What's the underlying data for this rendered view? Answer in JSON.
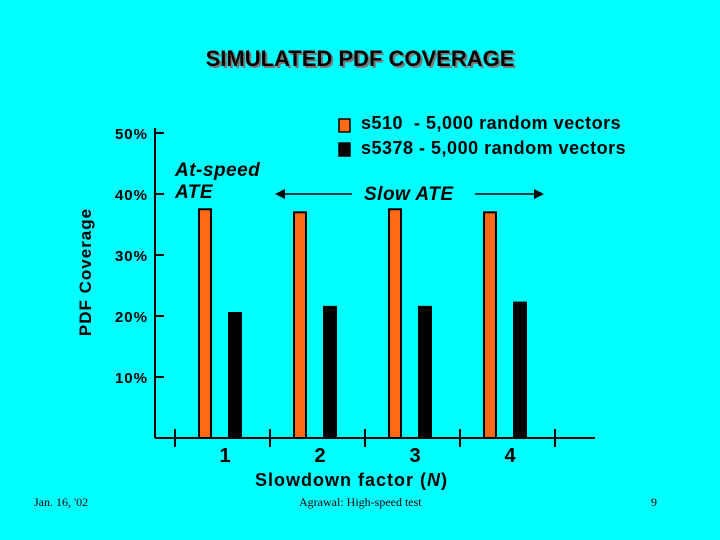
{
  "slide": {
    "title": "SIMULATED PDF COVERAGE",
    "background": "#00ffff",
    "footer_left": "Jan. 16, '02",
    "footer_center": "Agrawal: High-speed test",
    "footer_right": "9"
  },
  "annotations": {
    "at_speed_line1": "At-speed",
    "at_speed_line2": "ATE",
    "slow_ate": "Slow ATE"
  },
  "chart_data": {
    "type": "bar",
    "xlabel": "Slowdown factor (N)",
    "xlabel_parts": {
      "before": "Slowdown factor (",
      "italic": "N",
      "after": ")"
    },
    "ylabel": "PDF Coverage",
    "categories": [
      "1",
      "2",
      "3",
      "4"
    ],
    "ylim": [
      0,
      50
    ],
    "yticks": [
      10,
      20,
      30,
      40,
      50
    ],
    "ytick_labels": [
      "10%",
      "20%",
      "30%",
      "40%",
      "50%"
    ],
    "grid": false,
    "legend_position": "top-right",
    "series": [
      {
        "name": "s510  - 5,000 random vectors",
        "color": "#ff6a13",
        "values": [
          37.5,
          37,
          37.5,
          37
        ]
      },
      {
        "name": "s5378 - 5,000 random vectors",
        "color": "#000000",
        "values": [
          20.5,
          21.5,
          21.5,
          22.2
        ]
      }
    ]
  }
}
